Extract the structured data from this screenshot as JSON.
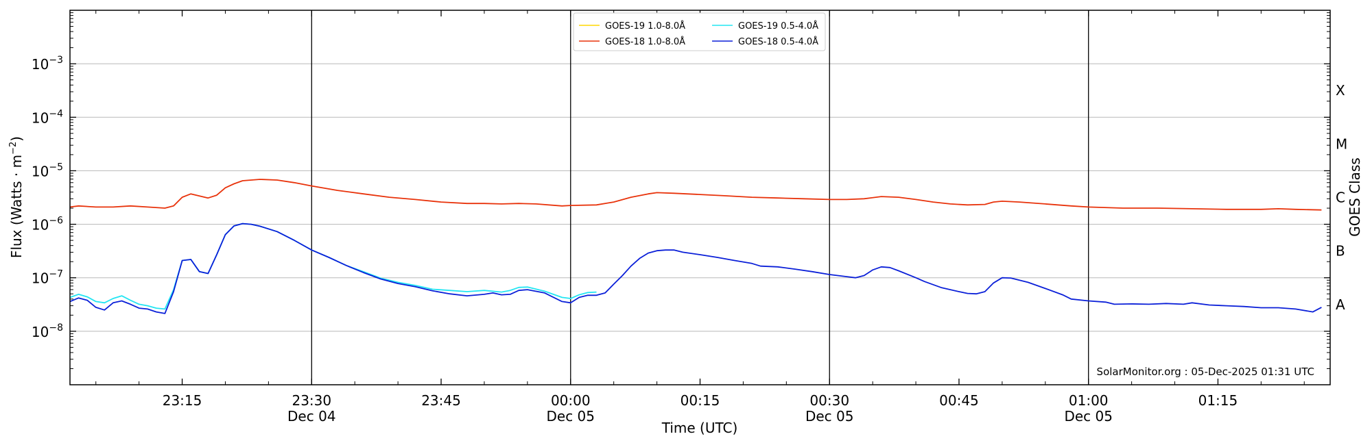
{
  "chart_data": {
    "type": "line",
    "xlabel": "Time (UTC)",
    "ylabel": "Flux (Watts · m",
    "ylabel_sup": "−2",
    "ylabel_close": ")",
    "right_label": "GOES Class",
    "credit": "SolarMonitor.org : 05-Dec-2025 01:31 UTC",
    "y_scale": "log",
    "ylim": [
      1e-09,
      0.01
    ],
    "xlim": [
      "23:02",
      "01:28"
    ],
    "grid": "horizontal",
    "legend_placement": "top-center",
    "y_ticks": [
      {
        "value": 0.001,
        "base": "10",
        "exp": "−3"
      },
      {
        "value": 0.0001,
        "base": "10",
        "exp": "−4"
      },
      {
        "value": 1e-05,
        "base": "10",
        "exp": "−5"
      },
      {
        "value": 1e-06,
        "base": "10",
        "exp": "−6"
      },
      {
        "value": 1e-07,
        "base": "10",
        "exp": "−7"
      },
      {
        "value": 1e-08,
        "base": "10",
        "exp": "−8"
      }
    ],
    "x_ticks": [
      {
        "time": "23:15",
        "label": "23:15",
        "date": ""
      },
      {
        "time": "23:30",
        "label": "23:30",
        "date": "Dec 04"
      },
      {
        "time": "23:45",
        "label": "23:45",
        "date": ""
      },
      {
        "time": "00:00",
        "label": "00:00",
        "date": "Dec 05"
      },
      {
        "time": "00:15",
        "label": "00:15",
        "date": ""
      },
      {
        "time": "00:30",
        "label": "00:30",
        "date": "Dec 05"
      },
      {
        "time": "00:45",
        "label": "00:45",
        "date": ""
      },
      {
        "time": "01:00",
        "label": "01:00",
        "date": "Dec 05"
      },
      {
        "time": "01:15",
        "label": "01:15",
        "date": ""
      }
    ],
    "vertical_lines": [
      "23:30",
      "00:00",
      "00:30",
      "01:00"
    ],
    "goes_classes": [
      {
        "label": "X",
        "value": 0.000316
      },
      {
        "label": "M",
        "value": 3.16e-05
      },
      {
        "label": "C",
        "value": 3.16e-06
      },
      {
        "label": "B",
        "value": 3.16e-07
      },
      {
        "label": "A",
        "value": 3.16e-08
      }
    ],
    "series": [
      {
        "name": "GOES-19 1.0-8.0Å",
        "color": "#ffd700",
        "points": []
      },
      {
        "name": "GOES-18 1.0-8.0Å",
        "color": "#e8320a",
        "points": [
          [
            "23:02",
            2.1e-06
          ],
          [
            "23:03",
            2.2e-06
          ],
          [
            "23:05",
            2.1e-06
          ],
          [
            "23:07",
            2.1e-06
          ],
          [
            "23:09",
            2.2e-06
          ],
          [
            "23:11",
            2.1e-06
          ],
          [
            "23:13",
            2e-06
          ],
          [
            "23:14",
            2.2e-06
          ],
          [
            "23:15",
            3.2e-06
          ],
          [
            "23:16",
            3.7e-06
          ],
          [
            "23:18",
            3.1e-06
          ],
          [
            "23:19",
            3.5e-06
          ],
          [
            "23:20",
            4.8e-06
          ],
          [
            "23:21",
            5.7e-06
          ],
          [
            "23:22",
            6.5e-06
          ],
          [
            "23:24",
            6.9e-06
          ],
          [
            "23:26",
            6.7e-06
          ],
          [
            "23:28",
            6e-06
          ],
          [
            "23:30",
            5.2e-06
          ],
          [
            "23:33",
            4.3e-06
          ],
          [
            "23:36",
            3.7e-06
          ],
          [
            "23:39",
            3.2e-06
          ],
          [
            "23:42",
            2.9e-06
          ],
          [
            "23:45",
            2.6e-06
          ],
          [
            "23:48",
            2.45e-06
          ],
          [
            "23:50",
            2.45e-06
          ],
          [
            "23:52",
            2.4e-06
          ],
          [
            "23:54",
            2.45e-06
          ],
          [
            "23:56",
            2.4e-06
          ],
          [
            "23:59",
            2.2e-06
          ],
          [
            "00:00",
            2.25e-06
          ],
          [
            "00:03",
            2.3e-06
          ],
          [
            "00:05",
            2.6e-06
          ],
          [
            "00:07",
            3.2e-06
          ],
          [
            "00:09",
            3.7e-06
          ],
          [
            "00:10",
            3.9e-06
          ],
          [
            "00:12",
            3.8e-06
          ],
          [
            "00:15",
            3.6e-06
          ],
          [
            "00:18",
            3.4e-06
          ],
          [
            "00:21",
            3.2e-06
          ],
          [
            "00:24",
            3.1e-06
          ],
          [
            "00:27",
            3e-06
          ],
          [
            "00:30",
            2.9e-06
          ],
          [
            "00:32",
            2.9e-06
          ],
          [
            "00:34",
            3e-06
          ],
          [
            "00:36",
            3.3e-06
          ],
          [
            "00:38",
            3.2e-06
          ],
          [
            "00:40",
            2.9e-06
          ],
          [
            "00:42",
            2.6e-06
          ],
          [
            "00:44",
            2.4e-06
          ],
          [
            "00:46",
            2.3e-06
          ],
          [
            "00:48",
            2.35e-06
          ],
          [
            "00:49",
            2.6e-06
          ],
          [
            "00:50",
            2.7e-06
          ],
          [
            "00:52",
            2.6e-06
          ],
          [
            "00:55",
            2.4e-06
          ],
          [
            "00:58",
            2.2e-06
          ],
          [
            "01:00",
            2.1e-06
          ],
          [
            "01:04",
            2e-06
          ],
          [
            "01:08",
            2e-06
          ],
          [
            "01:12",
            1.95e-06
          ],
          [
            "01:16",
            1.9e-06
          ],
          [
            "01:20",
            1.9e-06
          ],
          [
            "01:22",
            1.95e-06
          ],
          [
            "01:24",
            1.9e-06
          ],
          [
            "01:27",
            1.85e-06
          ]
        ]
      },
      {
        "name": "GOES-19 0.5-4.0Å",
        "color": "#22e5f2",
        "points": [
          [
            "23:02",
            4.3e-08
          ],
          [
            "23:03",
            4.9e-08
          ],
          [
            "23:04",
            4.4e-08
          ],
          [
            "23:05",
            3.6e-08
          ],
          [
            "23:06",
            3.4e-08
          ],
          [
            "23:07",
            4.1e-08
          ],
          [
            "23:08",
            4.6e-08
          ],
          [
            "23:09",
            3.8e-08
          ],
          [
            "23:10",
            3.2e-08
          ],
          [
            "23:11",
            3e-08
          ],
          [
            "23:12",
            2.7e-08
          ],
          [
            "23:13",
            2.6e-08
          ],
          [
            "23:14",
            6e-08
          ],
          [
            "23:15",
            2.1e-07
          ],
          [
            "23:16",
            2.2e-07
          ],
          [
            "23:17",
            1.3e-07
          ],
          [
            "23:18",
            1.2e-07
          ],
          [
            "23:19",
            2.7e-07
          ],
          [
            "23:20",
            6.4e-07
          ],
          [
            "23:21",
            9.3e-07
          ],
          [
            "23:22",
            1.03e-06
          ],
          [
            "23:23",
            1e-06
          ],
          [
            "23:24",
            9.2e-07
          ],
          [
            "23:26",
            7.3e-07
          ],
          [
            "23:28",
            5e-07
          ],
          [
            "23:30",
            3.3e-07
          ],
          [
            "23:32",
            2.4e-07
          ],
          [
            "23:34",
            1.7e-07
          ],
          [
            "23:36",
            1.3e-07
          ],
          [
            "23:38",
            9.8e-08
          ],
          [
            "23:40",
            8.2e-08
          ],
          [
            "23:42",
            7.2e-08
          ],
          [
            "23:44",
            6.1e-08
          ],
          [
            "23:46",
            5.8e-08
          ],
          [
            "23:48",
            5.5e-08
          ],
          [
            "23:50",
            5.8e-08
          ],
          [
            "23:52",
            5.4e-08
          ],
          [
            "23:53",
            5.8e-08
          ],
          [
            "23:54",
            6.6e-08
          ],
          [
            "23:55",
            6.7e-08
          ],
          [
            "23:57",
            5.6e-08
          ],
          [
            "23:59",
            4.3e-08
          ],
          [
            "24:00",
            4.1e-08
          ],
          [
            "24:01",
            4.8e-08
          ],
          [
            "24:02",
            5.3e-08
          ],
          [
            "24:03",
            5.4e-08
          ]
        ]
      },
      {
        "name": "GOES-18 0.5-4.0Å",
        "color": "#0a1fd8",
        "points": [
          [
            "23:02",
            3.6e-08
          ],
          [
            "23:03",
            4.2e-08
          ],
          [
            "23:04",
            3.8e-08
          ],
          [
            "23:05",
            2.8e-08
          ],
          [
            "23:06",
            2.5e-08
          ],
          [
            "23:07",
            3.4e-08
          ],
          [
            "23:08",
            3.7e-08
          ],
          [
            "23:09",
            3.2e-08
          ],
          [
            "23:10",
            2.7e-08
          ],
          [
            "23:11",
            2.6e-08
          ],
          [
            "23:12",
            2.3e-08
          ],
          [
            "23:13",
            2.15e-08
          ],
          [
            "23:14",
            5.5e-08
          ],
          [
            "23:15",
            2.1e-07
          ],
          [
            "23:16",
            2.2e-07
          ],
          [
            "23:17",
            1.3e-07
          ],
          [
            "23:18",
            1.2e-07
          ],
          [
            "23:19",
            2.7e-07
          ],
          [
            "23:20",
            6.4e-07
          ],
          [
            "23:21",
            9.3e-07
          ],
          [
            "23:22",
            1.03e-06
          ],
          [
            "23:23",
            1e-06
          ],
          [
            "23:24",
            9.2e-07
          ],
          [
            "23:26",
            7.3e-07
          ],
          [
            "23:28",
            5e-07
          ],
          [
            "23:30",
            3.3e-07
          ],
          [
            "23:32",
            2.4e-07
          ],
          [
            "23:34",
            1.7e-07
          ],
          [
            "23:36",
            1.25e-07
          ],
          [
            "23:38",
            9.5e-08
          ],
          [
            "23:40",
            7.8e-08
          ],
          [
            "23:42",
            6.8e-08
          ],
          [
            "23:44",
            5.7e-08
          ],
          [
            "23:46",
            5e-08
          ],
          [
            "23:48",
            4.6e-08
          ],
          [
            "23:50",
            4.9e-08
          ],
          [
            "23:51",
            5.2e-08
          ],
          [
            "23:52",
            4.8e-08
          ],
          [
            "23:53",
            4.9e-08
          ],
          [
            "23:54",
            5.8e-08
          ],
          [
            "23:55",
            6e-08
          ],
          [
            "23:57",
            5.2e-08
          ],
          [
            "23:59",
            3.6e-08
          ],
          [
            "00:00",
            3.4e-08
          ],
          [
            "00:01",
            4.3e-08
          ],
          [
            "00:02",
            4.7e-08
          ],
          [
            "00:03",
            4.7e-08
          ],
          [
            "00:04",
            5.2e-08
          ],
          [
            "00:05",
            7.6e-08
          ],
          [
            "00:06",
            1.1e-07
          ],
          [
            "00:07",
            1.65e-07
          ],
          [
            "00:08",
            2.3e-07
          ],
          [
            "00:09",
            2.9e-07
          ],
          [
            "00:10",
            3.2e-07
          ],
          [
            "00:11",
            3.3e-07
          ],
          [
            "00:12",
            3.3e-07
          ],
          [
            "00:13",
            3e-07
          ],
          [
            "00:15",
            2.7e-07
          ],
          [
            "00:17",
            2.4e-07
          ],
          [
            "00:19",
            2.1e-07
          ],
          [
            "00:21",
            1.85e-07
          ],
          [
            "00:22",
            1.65e-07
          ],
          [
            "00:24",
            1.6e-07
          ],
          [
            "00:26",
            1.45e-07
          ],
          [
            "00:28",
            1.3e-07
          ],
          [
            "00:30",
            1.15e-07
          ],
          [
            "00:32",
            1.05e-07
          ],
          [
            "00:33",
            1e-07
          ],
          [
            "00:34",
            1.1e-07
          ],
          [
            "00:35",
            1.4e-07
          ],
          [
            "00:36",
            1.6e-07
          ],
          [
            "00:37",
            1.55e-07
          ],
          [
            "00:38",
            1.35e-07
          ],
          [
            "00:40",
            1e-07
          ],
          [
            "00:41",
            8.5e-08
          ],
          [
            "00:43",
            6.5e-08
          ],
          [
            "00:45",
            5.5e-08
          ],
          [
            "00:46",
            5.1e-08
          ],
          [
            "00:47",
            5e-08
          ],
          [
            "00:48",
            5.5e-08
          ],
          [
            "00:49",
            8e-08
          ],
          [
            "00:50",
            1e-07
          ],
          [
            "00:51",
            9.9e-08
          ],
          [
            "00:53",
            8.2e-08
          ],
          [
            "00:55",
            6.3e-08
          ],
          [
            "00:57",
            4.8e-08
          ],
          [
            "00:58",
            4e-08
          ],
          [
            "01:00",
            3.7e-08
          ],
          [
            "01:02",
            3.5e-08
          ],
          [
            "01:03",
            3.2e-08
          ],
          [
            "01:05",
            3.25e-08
          ],
          [
            "01:07",
            3.2e-08
          ],
          [
            "01:09",
            3.3e-08
          ],
          [
            "01:11",
            3.2e-08
          ],
          [
            "01:12",
            3.4e-08
          ],
          [
            "01:14",
            3.1e-08
          ],
          [
            "01:16",
            3e-08
          ],
          [
            "01:18",
            2.9e-08
          ],
          [
            "01:20",
            2.75e-08
          ],
          [
            "01:22",
            2.75e-08
          ],
          [
            "01:24",
            2.6e-08
          ],
          [
            "01:26",
            2.3e-08
          ],
          [
            "01:27",
            2.8e-08
          ]
        ]
      }
    ]
  }
}
